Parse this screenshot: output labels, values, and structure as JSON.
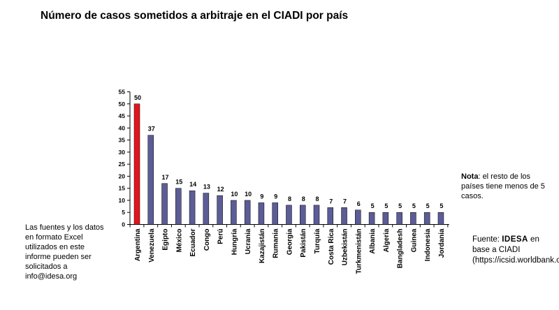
{
  "title": "Número de casos sometidos a arbitraje en el CIADI por país",
  "note": {
    "label": "Nota",
    "text": ": el resto de los países tiene menos de 5 casos."
  },
  "left_note": "Las fuentes y los datos en formato Excel utilizados en este informe pueden ser solicitados a info@idesa.org",
  "source": {
    "prefix": "Fuente: ",
    "brand": "IDESA",
    "suffix": " en base a CIADI (https://icsid.worldbank.org/)"
  },
  "colors": {
    "highlight": "#e0161d",
    "bar": "#5c5c97"
  },
  "chart_data": {
    "type": "bar",
    "categories": [
      "Argentina",
      "Venezuela",
      "Egipto",
      "México",
      "Ecuador",
      "Congo",
      "Perú",
      "Hungría",
      "Ucrania",
      "Kazajistán",
      "Rumania",
      "Georgia",
      "Pakistán",
      "Turquía",
      "Costa Rica",
      "Uzbekistán",
      "Turkmenistán",
      "Albania",
      "Algeria",
      "Bangladesh",
      "Guinea",
      "Indonesia",
      "Jordania"
    ],
    "values": [
      50,
      37,
      17,
      15,
      14,
      13,
      12,
      10,
      10,
      9,
      9,
      8,
      8,
      8,
      7,
      7,
      6,
      5,
      5,
      5,
      5,
      5,
      5
    ],
    "data_labels": [
      "50",
      "37",
      "17",
      "15",
      "14",
      "13",
      "12",
      "10",
      "10",
      "9",
      "9",
      "8",
      "8",
      "8",
      "7",
      "7",
      "6",
      "5",
      "5",
      "5",
      "5",
      "5",
      "5"
    ],
    "highlight_index": 0,
    "ylim": [
      0,
      55
    ],
    "yticks": [
      0,
      5,
      10,
      15,
      20,
      25,
      30,
      35,
      40,
      45,
      50,
      55
    ],
    "ytick_labels": [
      "0",
      "5",
      "10",
      "15",
      "20",
      "25",
      "30",
      "35",
      "40",
      "45",
      "50",
      "55"
    ],
    "xlabel": "",
    "ylabel": "",
    "grid": false,
    "legend": "none"
  }
}
